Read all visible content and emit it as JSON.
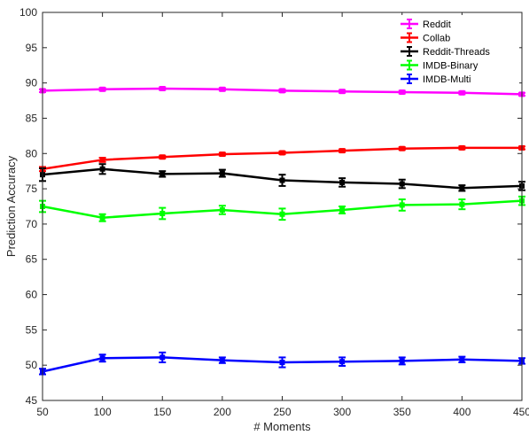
{
  "chart_data": {
    "type": "line",
    "title": "",
    "xlabel": "# Moments",
    "ylabel": "Prediction Accuracy",
    "xlim": [
      50,
      450
    ],
    "ylim": [
      45,
      100
    ],
    "xticks": [
      50,
      100,
      150,
      200,
      250,
      300,
      350,
      400,
      450
    ],
    "yticks": [
      45,
      50,
      55,
      60,
      65,
      70,
      75,
      80,
      85,
      90,
      95,
      100
    ],
    "x": [
      50,
      100,
      150,
      200,
      250,
      300,
      350,
      400,
      450
    ],
    "legend_position": "top-right",
    "grid": false,
    "series": [
      {
        "name": "Reddit",
        "color": "#ff00ff",
        "values": [
          88.9,
          89.1,
          89.2,
          89.1,
          88.9,
          88.8,
          88.7,
          88.6,
          88.4
        ],
        "errors": [
          0.2,
          0.2,
          0.2,
          0.2,
          0.2,
          0.2,
          0.2,
          0.2,
          0.2
        ]
      },
      {
        "name": "Collab",
        "color": "#ff0000",
        "values": [
          77.8,
          79.1,
          79.5,
          79.9,
          80.1,
          80.4,
          80.7,
          80.8,
          80.8
        ],
        "errors": [
          0.3,
          0.3,
          0.2,
          0.2,
          0.2,
          0.2,
          0.2,
          0.2,
          0.2
        ]
      },
      {
        "name": "Reddit-Threads",
        "color": "#000000",
        "values": [
          77.0,
          77.8,
          77.1,
          77.2,
          76.2,
          75.9,
          75.7,
          75.1,
          75.4
        ],
        "errors": [
          0.9,
          0.7,
          0.4,
          0.5,
          0.8,
          0.6,
          0.6,
          0.4,
          0.6
        ]
      },
      {
        "name": "IMDB-Binary",
        "color": "#00ff00",
        "values": [
          72.5,
          70.9,
          71.5,
          72.0,
          71.4,
          72.0,
          72.7,
          72.8,
          73.3
        ],
        "errors": [
          0.8,
          0.5,
          0.8,
          0.6,
          0.8,
          0.5,
          0.8,
          0.7,
          0.6
        ]
      },
      {
        "name": "IMDB-Multi",
        "color": "#0000ff",
        "values": [
          49.1,
          51.0,
          51.1,
          50.7,
          50.4,
          50.5,
          50.6,
          50.8,
          50.6
        ],
        "errors": [
          0.4,
          0.5,
          0.7,
          0.4,
          0.7,
          0.6,
          0.5,
          0.4,
          0.4
        ]
      }
    ]
  }
}
